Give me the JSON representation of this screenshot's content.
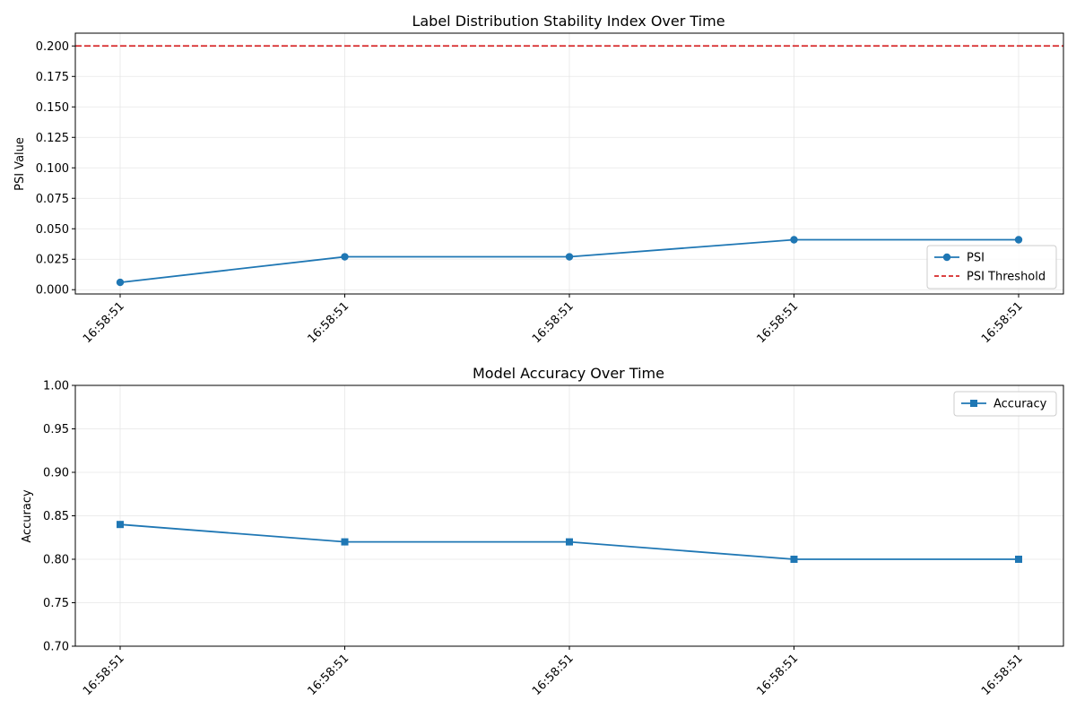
{
  "chart_data": [
    {
      "type": "line",
      "title": "Label Distribution Stability Index Over Time",
      "xlabel": "",
      "ylabel": "PSI Value",
      "categories": [
        "16:58:51",
        "16:58:51",
        "16:58:51",
        "16:58:51",
        "16:58:51"
      ],
      "yticks": [
        "0.000",
        "0.025",
        "0.050",
        "0.075",
        "0.100",
        "0.125",
        "0.150",
        "0.175",
        "0.200"
      ],
      "ylim": [
        -0.0035,
        0.2105
      ],
      "grid": true,
      "legend_position": "lower-right",
      "series": [
        {
          "name": "PSI",
          "values": [
            0.006,
            0.027,
            0.027,
            0.041,
            0.041
          ],
          "color": "#1f77b4",
          "marker": "circle",
          "style": "solid"
        },
        {
          "name": "PSI Threshold",
          "values": [
            0.2,
            0.2,
            0.2,
            0.2,
            0.2
          ],
          "color": "#d62728",
          "marker": "none",
          "style": "dashed",
          "reference_line": true
        }
      ]
    },
    {
      "type": "line",
      "title": "Model Accuracy Over Time",
      "xlabel": "",
      "ylabel": "Accuracy",
      "categories": [
        "16:58:51",
        "16:58:51",
        "16:58:51",
        "16:58:51",
        "16:58:51"
      ],
      "yticks": [
        "0.70",
        "0.75",
        "0.80",
        "0.85",
        "0.90",
        "0.95",
        "1.00"
      ],
      "ylim": [
        0.7,
        1.0
      ],
      "grid": true,
      "legend_position": "upper-right",
      "series": [
        {
          "name": "Accuracy",
          "values": [
            0.84,
            0.82,
            0.82,
            0.8,
            0.8
          ],
          "color": "#1f77b4",
          "marker": "square",
          "style": "solid"
        }
      ]
    }
  ]
}
